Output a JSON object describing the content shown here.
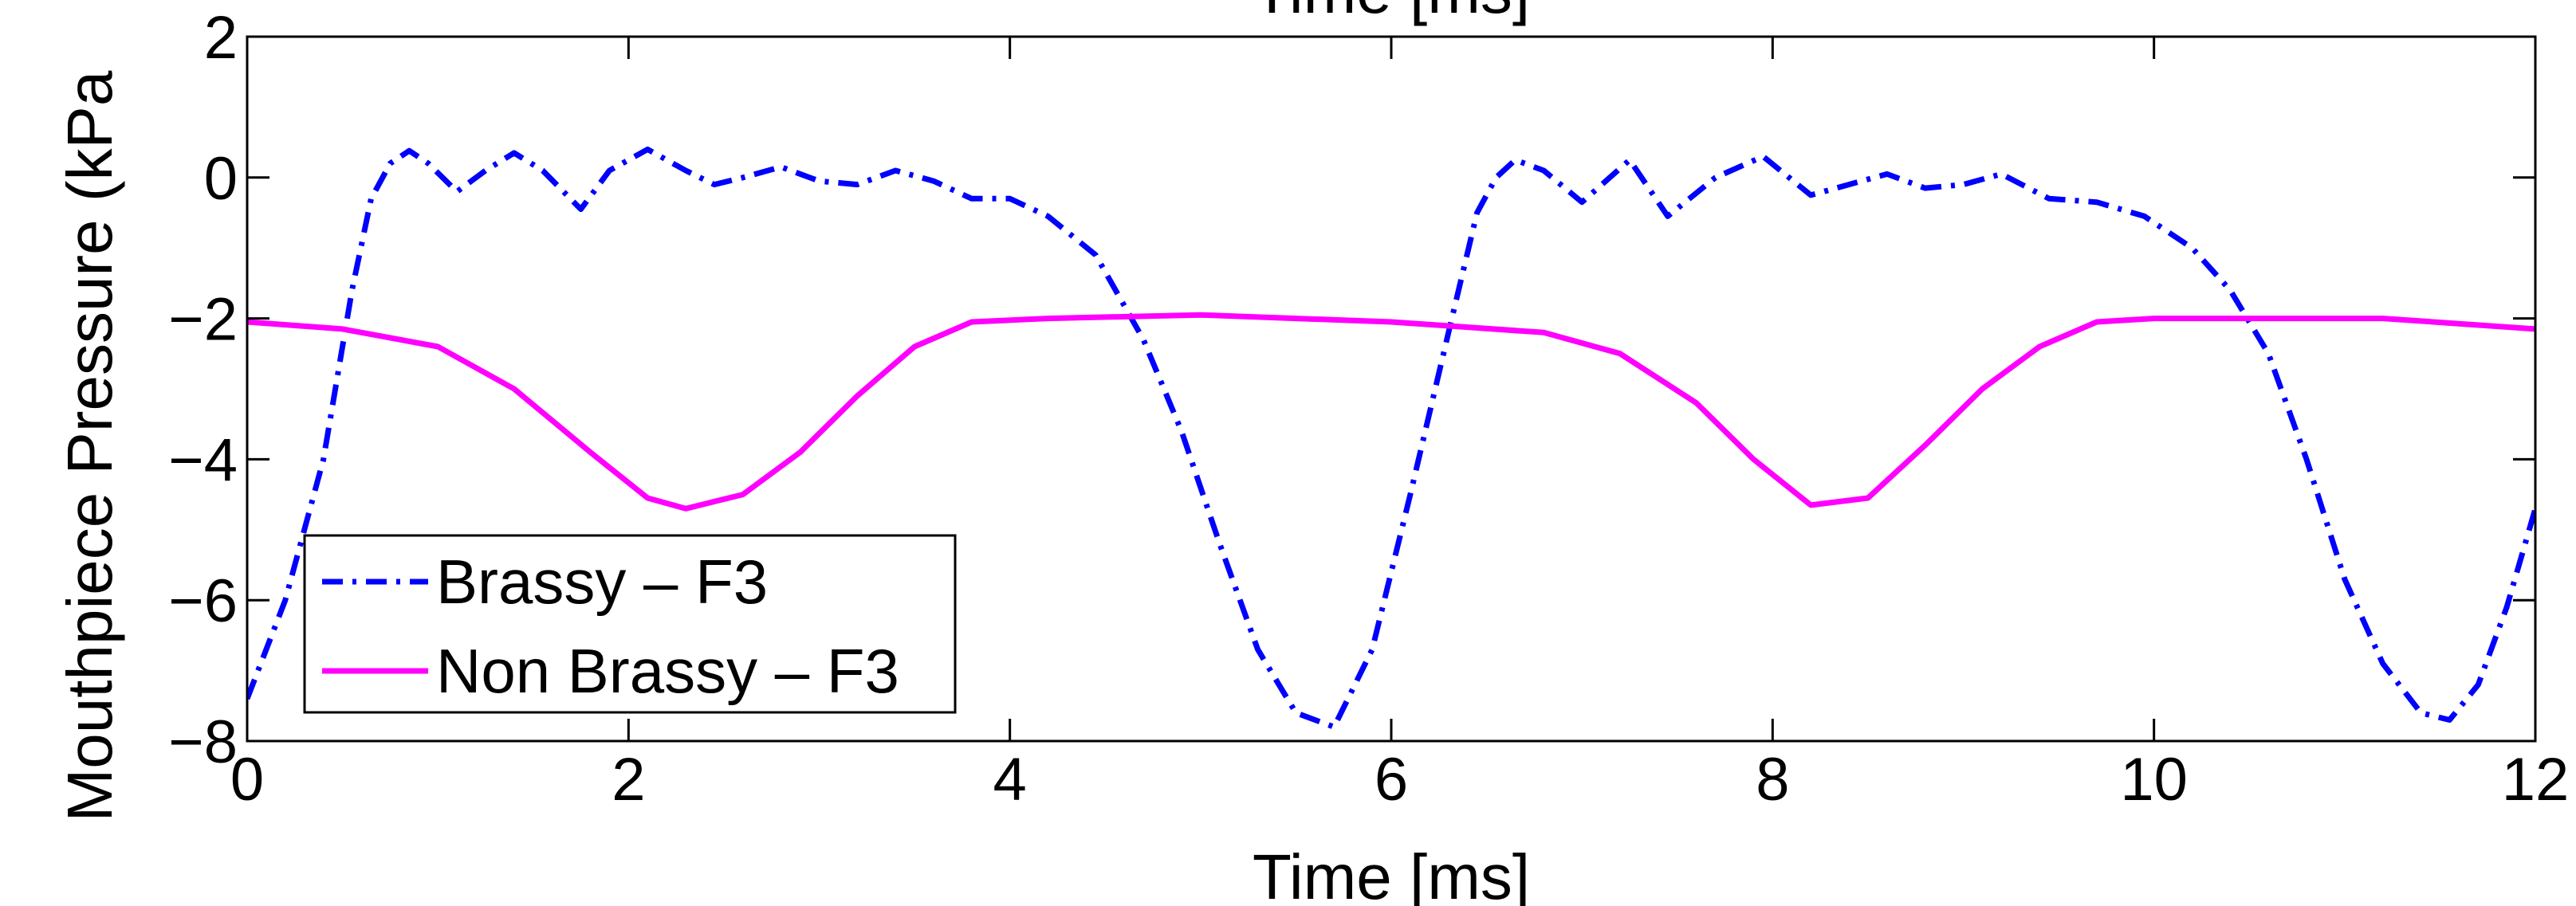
{
  "chart_data": {
    "type": "line",
    "title_top_clipped": "Time [ms]",
    "xlabel": "Time [ms]",
    "ylabel": "Mouthpiece Pressure (kPa",
    "xlim": [
      0,
      12
    ],
    "ylim": [
      -8,
      2
    ],
    "xticks": [
      0,
      2,
      4,
      6,
      8,
      10,
      12
    ],
    "yticks": [
      2,
      0,
      -2,
      -4,
      -6,
      -8
    ],
    "xtick_labels": [
      "0",
      "2",
      "4",
      "6",
      "8",
      "10",
      "12"
    ],
    "ytick_labels": [
      "2",
      "0",
      "−2",
      "−4",
      "−6",
      "−8"
    ],
    "grid": false,
    "legend_position": "bottom-left",
    "series": [
      {
        "name": "Brassy – F3",
        "color": "#0000ff",
        "style": "dash-dot",
        "x": [
          0,
          0.2,
          0.4,
          0.55,
          0.65,
          0.75,
          0.85,
          0.95,
          1.1,
          1.25,
          1.4,
          1.55,
          1.75,
          1.9,
          2.1,
          2.3,
          2.45,
          2.6,
          2.8,
          3.0,
          3.2,
          3.4,
          3.6,
          3.8,
          4.0,
          4.2,
          4.45,
          4.7,
          4.9,
          5.1,
          5.3,
          5.5,
          5.7,
          5.9,
          6.1,
          6.3,
          6.45,
          6.55,
          6.65,
          6.8,
          7.0,
          7.25,
          7.45,
          7.7,
          7.95,
          8.2,
          8.4,
          8.6,
          8.8,
          9.0,
          9.2,
          9.45,
          9.7,
          9.95,
          10.2,
          10.4,
          10.6,
          10.8,
          11.0,
          11.2,
          11.4,
          11.55,
          11.7,
          11.85,
          12.0
        ],
        "y": [
          -7.4,
          -6.0,
          -4.0,
          -1.6,
          -0.3,
          0.2,
          0.38,
          0.2,
          -0.2,
          0.1,
          0.35,
          0.1,
          -0.45,
          0.1,
          0.4,
          0.1,
          -0.1,
          0.0,
          0.15,
          -0.05,
          -0.1,
          0.1,
          -0.05,
          -0.3,
          -0.3,
          -0.55,
          -1.1,
          -2.3,
          -3.6,
          -5.2,
          -6.7,
          -7.6,
          -7.8,
          -6.7,
          -4.5,
          -2.2,
          -0.5,
          0.0,
          0.25,
          0.1,
          -0.35,
          0.25,
          -0.55,
          0.0,
          0.3,
          -0.25,
          -0.1,
          0.05,
          -0.15,
          -0.1,
          0.05,
          -0.3,
          -0.35,
          -0.55,
          -1.0,
          -1.6,
          -2.5,
          -4.0,
          -5.7,
          -6.9,
          -7.6,
          -7.7,
          -7.2,
          -6.1,
          -4.7
        ]
      },
      {
        "name": "Non Brassy – F3",
        "color": "#ff00ff",
        "style": "solid",
        "x": [
          0,
          0.5,
          1.0,
          1.4,
          1.8,
          2.1,
          2.3,
          2.6,
          2.9,
          3.2,
          3.5,
          3.8,
          4.2,
          5.0,
          6.0,
          6.8,
          7.2,
          7.6,
          7.9,
          8.2,
          8.5,
          8.8,
          9.1,
          9.4,
          9.7,
          10.0,
          10.6,
          11.2,
          12.0
        ],
        "y": [
          -2.05,
          -2.15,
          -2.4,
          -3.0,
          -3.9,
          -4.55,
          -4.7,
          -4.5,
          -3.9,
          -3.1,
          -2.4,
          -2.05,
          -2.0,
          -1.95,
          -2.05,
          -2.2,
          -2.5,
          -3.2,
          -4.0,
          -4.65,
          -4.55,
          -3.8,
          -3.0,
          -2.4,
          -2.05,
          -2.0,
          -2.0,
          -2.0,
          -2.15
        ]
      }
    ]
  }
}
